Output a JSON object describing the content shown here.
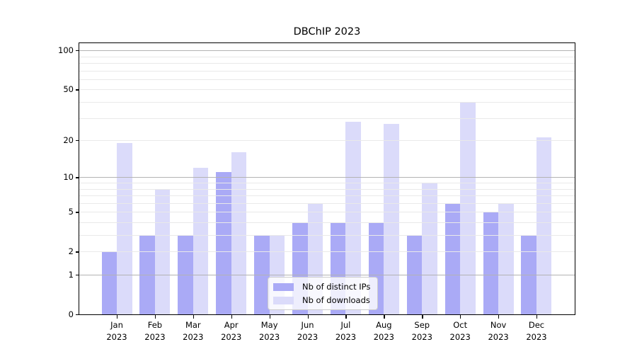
{
  "chart_data": {
    "type": "bar",
    "title": "DBChIP 2023",
    "categories": [
      "Jan",
      "Feb",
      "Mar",
      "Apr",
      "May",
      "Jun",
      "Jul",
      "Aug",
      "Sep",
      "Oct",
      "Nov",
      "Dec"
    ],
    "year_label": "2023",
    "series": [
      {
        "name": "Nb of distinct IPs",
        "color": "#aaaaf6",
        "values": [
          2,
          3,
          3,
          11,
          3,
          4,
          4,
          4,
          3,
          6,
          5,
          3
        ]
      },
      {
        "name": "Nb of downloads",
        "color": "#dbdbfa",
        "values": [
          19,
          8,
          12,
          16,
          3,
          6,
          28,
          27,
          9,
          40,
          6,
          21
        ]
      }
    ],
    "xlabel": "",
    "ylabel": "",
    "y_axis": {
      "scale": "log1p",
      "ticks": [
        0,
        1,
        2,
        5,
        10,
        20,
        50,
        100
      ],
      "ylim": [
        0,
        114
      ]
    },
    "major_gridlines": [
      1,
      10,
      100
    ],
    "minor_gridlines": [
      2,
      3,
      4,
      5,
      6,
      7,
      8,
      9,
      20,
      30,
      40,
      50,
      60,
      70,
      80,
      90
    ],
    "grid": true,
    "legend_position": "lower center"
  },
  "colors": {
    "background": "#ffffff",
    "axis": "#000000",
    "major_grid": "#b3b3b3",
    "minor_grid": "#e9e9e9",
    "legend_border": "#cccccc"
  }
}
